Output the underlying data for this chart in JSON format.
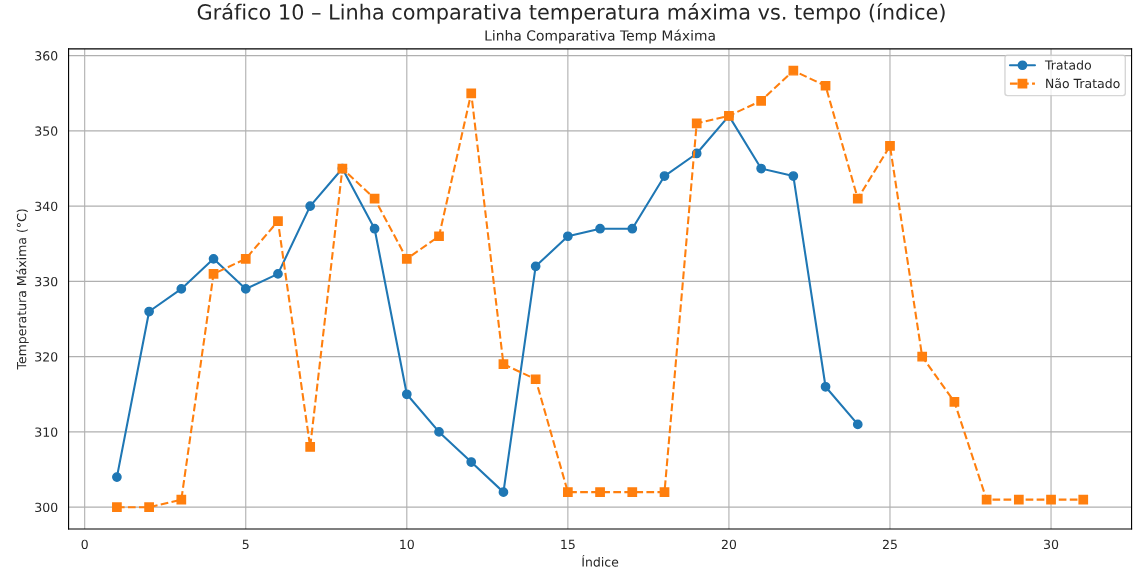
{
  "chart_data": {
    "type": "line",
    "title": "Linha Comparativa Temp Máxima",
    "subtitle": "Gráfico 10 – Linha comparativa temperatura máxima vs. tempo (índice)",
    "xlabel": "Índice",
    "ylabel": "Temperatura Máxima (°C)",
    "series": [
      {
        "name": "Tratado",
        "color": "#1f77b4",
        "marker": "circle",
        "line_style": "solid",
        "x": [
          1,
          2,
          3,
          4,
          5,
          6,
          7,
          8,
          9,
          10,
          11,
          12,
          13,
          14,
          15,
          16,
          17,
          18,
          19,
          20,
          21,
          22,
          23,
          24
        ],
        "values": [
          304,
          326,
          329,
          333,
          329,
          331,
          340,
          345,
          337,
          315,
          310,
          306,
          302,
          332,
          336,
          337,
          337,
          344,
          347,
          352,
          345,
          344,
          316,
          311
        ]
      },
      {
        "name": "Não Tratado",
        "color": "#ff7f0e",
        "marker": "square",
        "line_style": "dashed",
        "x": [
          1,
          2,
          3,
          4,
          5,
          6,
          7,
          8,
          9,
          10,
          11,
          12,
          13,
          14,
          15,
          16,
          17,
          18,
          19,
          20,
          21,
          22,
          23,
          24,
          25,
          26,
          27,
          28,
          29,
          30,
          31
        ],
        "values": [
          300,
          300,
          301,
          331,
          333,
          338,
          308,
          345,
          341,
          333,
          336,
          355,
          319,
          317,
          302,
          302,
          302,
          302,
          351,
          352,
          354,
          358,
          356,
          341,
          348,
          320,
          314,
          301,
          301,
          301,
          301
        ]
      }
    ],
    "xlim": [
      -0.5,
      32.5
    ],
    "xticks": [
      0,
      5,
      10,
      15,
      20,
      25,
      30
    ],
    "ylim": [
      297.1,
      360.9
    ],
    "yticks": [
      300,
      310,
      320,
      330,
      340,
      350,
      360
    ],
    "grid": true,
    "legend": "top right"
  }
}
